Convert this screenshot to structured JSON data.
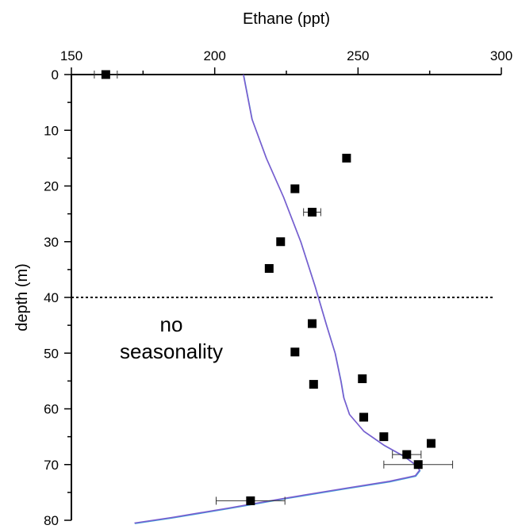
{
  "chart_data": {
    "type": "scatter",
    "xlabel": "Ethane (ppt)",
    "ylabel": "depth (m)",
    "xlim": [
      150,
      300
    ],
    "ylim": [
      0,
      80
    ],
    "y_inverted": true,
    "x_axis_position": "top",
    "grid": false,
    "x_ticks": [
      "150",
      "200",
      "250",
      "300"
    ],
    "y_ticks": [
      "0",
      "10",
      "20",
      "30",
      "40",
      "50",
      "60",
      "70",
      "80"
    ],
    "points": [
      {
        "x": 162,
        "y": 0,
        "xerr": 4
      },
      {
        "x": 246,
        "y": 15
      },
      {
        "x": 228,
        "y": 20.5
      },
      {
        "x": 234,
        "y": 24.7,
        "xerr": 3
      },
      {
        "x": 223,
        "y": 30
      },
      {
        "x": 219,
        "y": 34.8
      },
      {
        "x": 234,
        "y": 44.7
      },
      {
        "x": 228,
        "y": 49.8
      },
      {
        "x": 251.5,
        "y": 54.6
      },
      {
        "x": 234.5,
        "y": 55.6
      },
      {
        "x": 252,
        "y": 61.5
      },
      {
        "x": 259,
        "y": 65
      },
      {
        "x": 275.5,
        "y": 66.2
      },
      {
        "x": 267,
        "y": 68.2,
        "xerr": 5
      },
      {
        "x": 271,
        "y": 70,
        "xerr": 12
      },
      {
        "x": 212.5,
        "y": 76.5,
        "xerr": 12
      }
    ],
    "series": [
      {
        "color": "#7a5ccf",
        "x": [
          210,
          213,
          218,
          224,
          230,
          235,
          239,
          242,
          244,
          245,
          247,
          252,
          259,
          266,
          270,
          271.5,
          270,
          261,
          245,
          225,
          205,
          185,
          172
        ],
        "y": [
          0,
          8,
          15,
          22,
          30,
          38,
          45,
          50,
          55,
          58,
          61,
          64,
          66.5,
          68.5,
          70,
          71,
          72,
          73,
          74.3,
          76,
          77.8,
          79.5,
          80.5
        ]
      }
    ],
    "reference_line": {
      "y": 40,
      "style": "dotted"
    },
    "annotation": {
      "line1": "no",
      "line2": "seasonality"
    }
  }
}
